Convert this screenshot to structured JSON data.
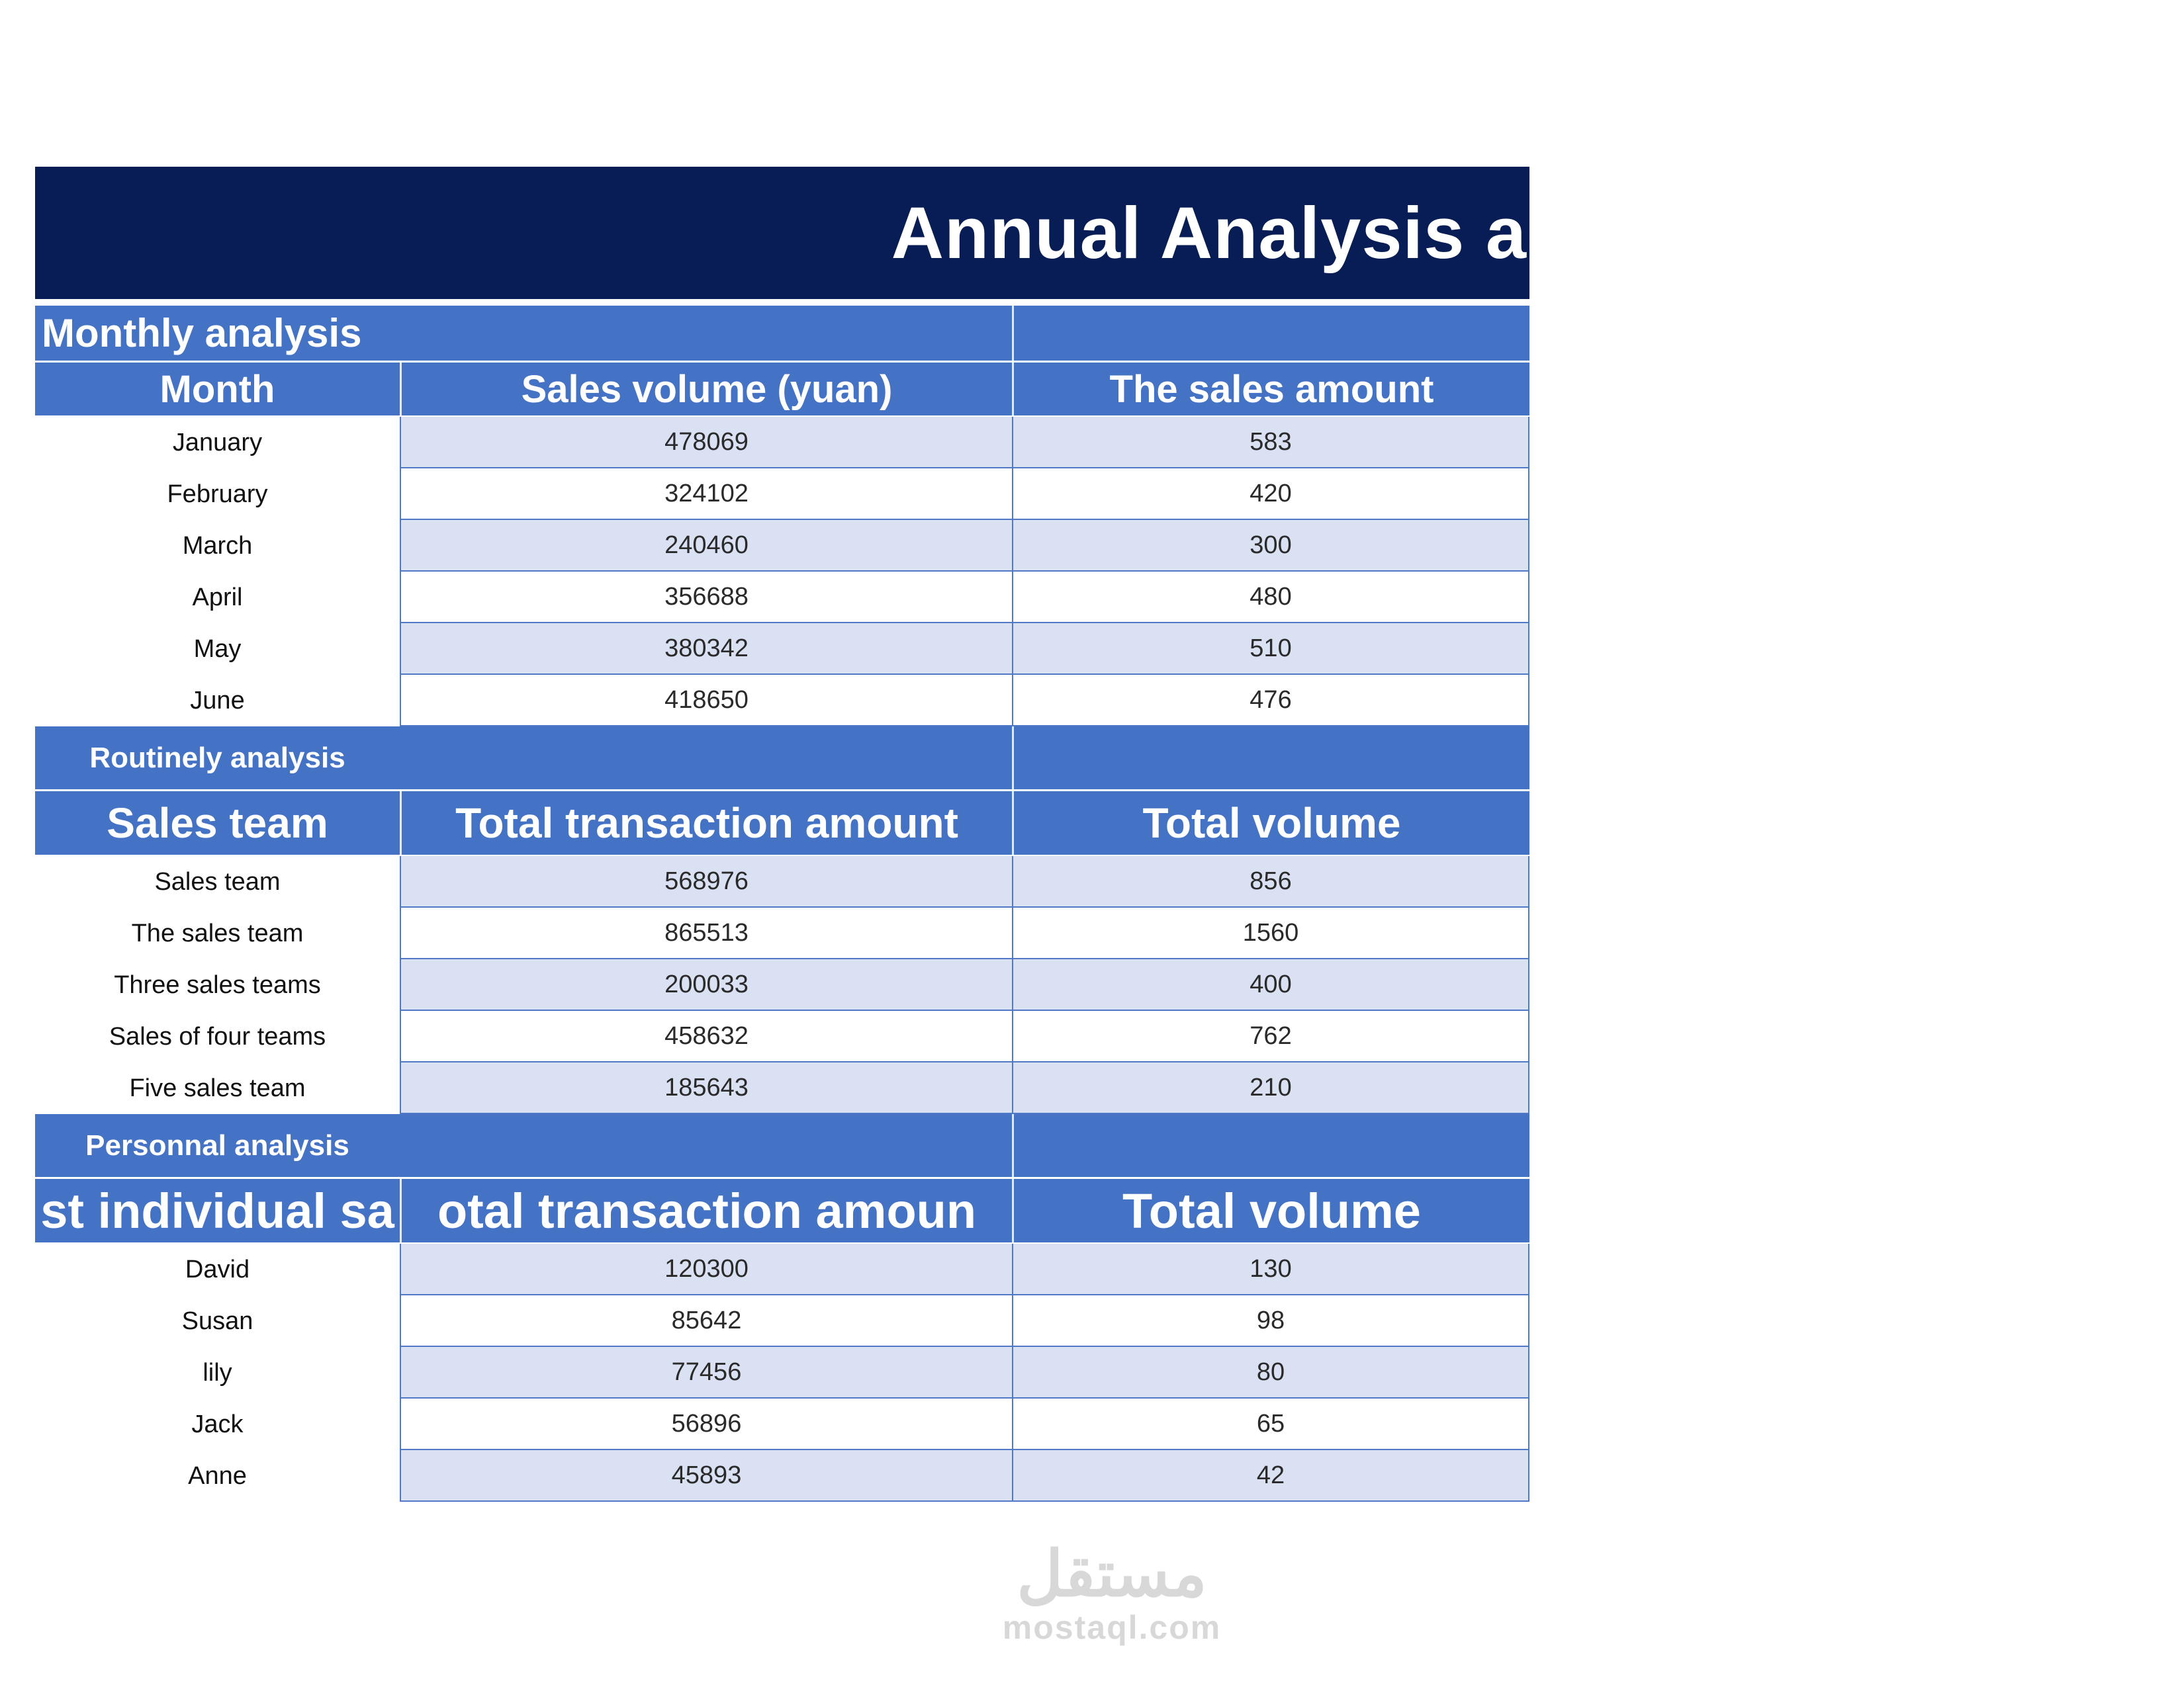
{
  "title": "Annual Analysis a",
  "monthly": {
    "section_label": "Monthly analysis",
    "headers": [
      "Month",
      "Sales volume (yuan)",
      "The sales amount"
    ],
    "rows": [
      {
        "label": "January",
        "amount": "478069",
        "volume": "583"
      },
      {
        "label": "February",
        "amount": "324102",
        "volume": "420"
      },
      {
        "label": "March",
        "amount": "240460",
        "volume": "300"
      },
      {
        "label": "April",
        "amount": "356688",
        "volume": "480"
      },
      {
        "label": "May",
        "amount": "380342",
        "volume": "510"
      },
      {
        "label": "June",
        "amount": "418650",
        "volume": "476"
      }
    ]
  },
  "routinely": {
    "section_label": "Routinely analysis",
    "headers": [
      "Sales team",
      "Total transaction amount",
      "Total volume"
    ],
    "rows": [
      {
        "label": "Sales team",
        "amount": "568976",
        "volume": "856"
      },
      {
        "label": "The sales team",
        "amount": "865513",
        "volume": "1560"
      },
      {
        "label": "Three sales teams",
        "amount": "200033",
        "volume": "400"
      },
      {
        "label": "Sales of four teams",
        "amount": "458632",
        "volume": "762"
      },
      {
        "label": "Five sales team",
        "amount": "185643",
        "volume": "210"
      }
    ]
  },
  "personnal": {
    "section_label": "Personnal analysis",
    "headers": [
      "st individual sa",
      "otal transaction amoun",
      "Total volume"
    ],
    "rows": [
      {
        "label": "David",
        "amount": "120300",
        "volume": "130"
      },
      {
        "label": "Susan",
        "amount": "85642",
        "volume": "98"
      },
      {
        "label": "lily",
        "amount": "77456",
        "volume": "80"
      },
      {
        "label": "Jack",
        "amount": "56896",
        "volume": "65"
      },
      {
        "label": "Anne",
        "amount": "45893",
        "volume": "42"
      }
    ]
  },
  "watermark": {
    "arabic": "مستقل",
    "latin": "mostaql.com"
  },
  "colors": {
    "navy": "#081d56",
    "blue": "#4472c4",
    "light_row": "#d9e1f2",
    "border": "#4f79c7"
  }
}
